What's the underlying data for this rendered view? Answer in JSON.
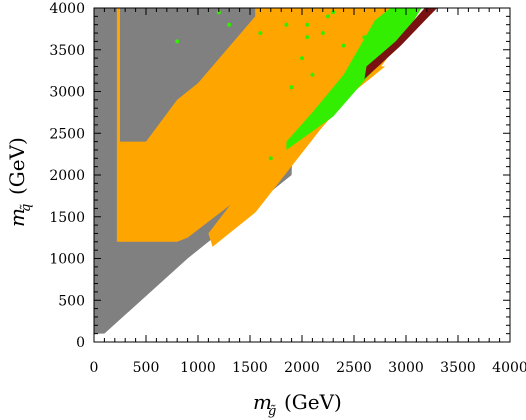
{
  "chart_data": {
    "type": "scatter",
    "title": "",
    "xlabel": {
      "symbol": "m",
      "subscript": "g̃",
      "unit": "(GeV)"
    },
    "ylabel": {
      "symbol": "m",
      "subscript": "q̃",
      "unit": "(GeV)"
    },
    "xlim": [
      0,
      4000
    ],
    "ylim": [
      0,
      4000
    ],
    "xticks": [
      0,
      500,
      1000,
      1500,
      2000,
      2500,
      3000,
      3500,
      4000
    ],
    "yticks": [
      0,
      500,
      1000,
      1500,
      2000,
      2500,
      3000,
      3500,
      4000
    ],
    "grid": false,
    "legend": "none",
    "series": [
      {
        "color": "#808080",
        "regions": [
          [
            [
              0,
              100
            ],
            [
              100,
              100
            ],
            [
              900,
              1000
            ],
            [
              1000,
              1100
            ],
            [
              1500,
              1600
            ],
            [
              1900,
              2000
            ],
            [
              1950,
              4000
            ],
            [
              0,
              4000
            ]
          ],
          [
            [
              250,
              1400
            ],
            [
              700,
              3000
            ],
            [
              1000,
              3300
            ],
            [
              1900,
              2800
            ],
            [
              1950,
              3500
            ],
            [
              1000,
              4000
            ],
            [
              250,
              4000
            ]
          ]
        ]
      },
      {
        "color": "#ffa500",
        "regions": [
          [
            [
              220,
              1200
            ],
            [
              800,
              1200
            ],
            [
              900,
              1250
            ],
            [
              2000,
              2300
            ],
            [
              2500,
              3000
            ],
            [
              2700,
              3200
            ],
            [
              3000,
              3700
            ],
            [
              3100,
              4000
            ],
            [
              1550,
              4000
            ],
            [
              1550,
              3900
            ],
            [
              1000,
              3100
            ],
            [
              800,
              2900
            ],
            [
              500,
              2400
            ],
            [
              250,
              2400
            ],
            [
              250,
              4000
            ],
            [
              220,
              4000
            ]
          ],
          [
            [
              1150,
              1100
            ],
            [
              1300,
              1150
            ],
            [
              2400,
              2900
            ],
            [
              2800,
              3300
            ],
            [
              2700,
              3300
            ],
            [
              1500,
              1950
            ],
            [
              1100,
              1300
            ]
          ]
        ],
        "scatter": [
          [
            300,
            1300
          ],
          [
            350,
            1400
          ],
          [
            420,
            1300
          ],
          [
            500,
            1250
          ],
          [
            350,
            1500
          ],
          [
            480,
            1480
          ],
          [
            550,
            1400
          ],
          [
            300,
            1700
          ],
          [
            450,
            1700
          ],
          [
            600,
            1650
          ],
          [
            700,
            1550
          ],
          [
            1000,
            2700
          ],
          [
            1200,
            2900
          ],
          [
            1350,
            3100
          ],
          [
            1600,
            3150
          ],
          [
            1800,
            3300
          ],
          [
            1900,
            3650
          ],
          [
            2000,
            3300
          ],
          [
            2100,
            3500
          ],
          [
            2200,
            3700
          ],
          [
            2300,
            3800
          ],
          [
            2150,
            3900
          ],
          [
            2450,
            3800
          ],
          [
            1700,
            2900
          ],
          [
            1650,
            2650
          ],
          [
            1500,
            2500
          ],
          [
            1900,
            2450
          ],
          [
            1800,
            2200
          ],
          [
            1700,
            2600
          ],
          [
            1600,
            2400
          ],
          [
            2400,
            3500
          ],
          [
            2500,
            3700
          ],
          [
            2250,
            3400
          ],
          [
            2700,
            3850
          ],
          [
            2600,
            3950
          ]
        ]
      },
      {
        "color": "#33ee00",
        "regions": [
          [
            [
              1850,
              2300
            ],
            [
              2300,
              2700
            ],
            [
              2650,
              3200
            ],
            [
              2950,
              3600
            ],
            [
              3050,
              3800
            ],
            [
              3150,
              4000
            ],
            [
              2850,
              4000
            ],
            [
              2700,
              3850
            ],
            [
              2400,
              3200
            ],
            [
              2100,
              2750
            ],
            [
              1850,
              2400
            ]
          ]
        ],
        "scatter": [
          [
            800,
            3600
          ],
          [
            1300,
            3800
          ],
          [
            1600,
            3700
          ],
          [
            2300,
            3950
          ],
          [
            2050,
            3650
          ],
          [
            2000,
            3400
          ],
          [
            2200,
            3700
          ],
          [
            2100,
            3200
          ],
          [
            1900,
            3050
          ],
          [
            1700,
            2200
          ],
          [
            2600,
            3650
          ],
          [
            2700,
            3550
          ],
          [
            2400,
            3550
          ],
          [
            1200,
            3950
          ],
          [
            2050,
            3800
          ],
          [
            2250,
            3900
          ],
          [
            1850,
            3800
          ]
        ]
      },
      {
        "color": "#7a1212",
        "regions": [
          [
            [
              2600,
              3150
            ],
            [
              2950,
              3550
            ],
            [
              3220,
              3900
            ],
            [
              3300,
              4000
            ],
            [
              3180,
              4000
            ],
            [
              2900,
              3600
            ],
            [
              2620,
              3300
            ]
          ]
        ]
      }
    ]
  }
}
